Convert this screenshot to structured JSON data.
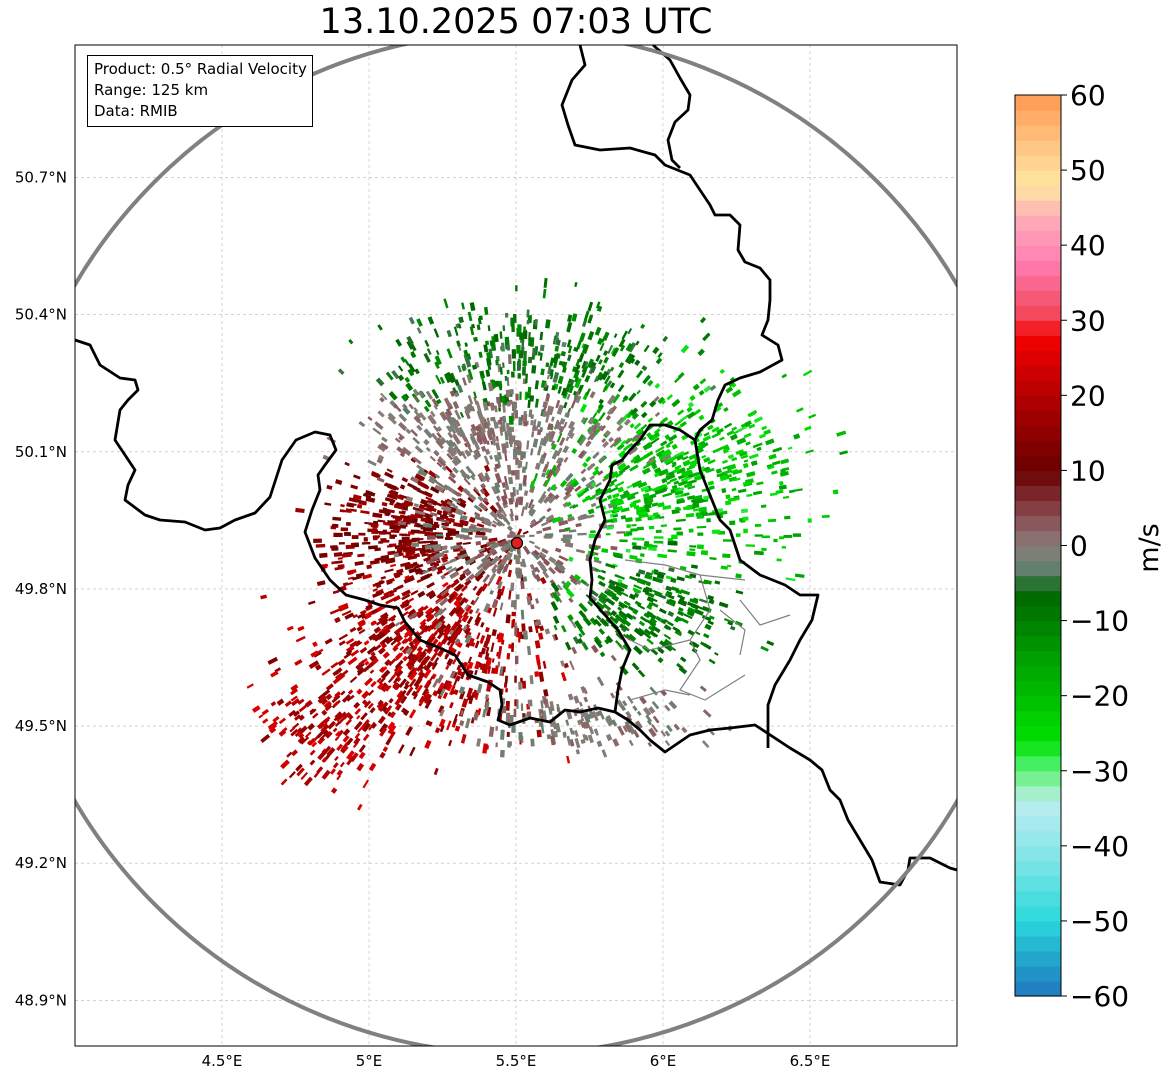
{
  "title": "13.10.2025 07:03 UTC",
  "info": {
    "product": "Product: 0.5° Radial Velocity",
    "range": "Range: 125 km",
    "data": "Data: RMIB"
  },
  "map": {
    "lon_ticks": [
      4.5,
      5.0,
      5.5,
      6.0,
      6.5
    ],
    "lon_tick_labels": [
      "4.5°E",
      "5°E",
      "5.5°E",
      "6°E",
      "6.5°E"
    ],
    "lat_ticks": [
      50.7,
      50.4,
      50.1,
      49.8,
      49.5,
      49.2,
      48.9
    ],
    "lat_tick_labels": [
      "50.7°N",
      "50.4°N",
      "50.1°N",
      "49.8°N",
      "49.5°N",
      "49.2°N",
      "48.9°N"
    ],
    "lon_range": [
      4.0,
      7.0
    ],
    "lat_range": [
      48.8,
      50.99
    ],
    "radar_site": {
      "lon": 5.505,
      "lat": 49.915
    },
    "range_circle_km": 125,
    "colors": {
      "range_ring": "#808080",
      "border": "#000000",
      "subdivision": "#808080",
      "radar_marker": "#e02020",
      "grid": "#b8b8b8"
    }
  },
  "colorbar": {
    "unit": "m/s",
    "vmin": -60,
    "vmax": 60,
    "ticks": [
      60,
      50,
      40,
      30,
      20,
      10,
      0,
      -10,
      -20,
      -30,
      -40,
      -50,
      -60
    ],
    "tick_labels": [
      "60",
      "50",
      "40",
      "30",
      "20",
      "10",
      "0",
      "−10",
      "−20",
      "−30",
      "−40",
      "−50",
      "−60"
    ],
    "stops": [
      {
        "v": -60,
        "c": "#1f77c0"
      },
      {
        "v": -55,
        "c": "#22a6cc"
      },
      {
        "v": -50,
        "c": "#2ad8dc"
      },
      {
        "v": -42,
        "c": "#7ee4e6"
      },
      {
        "v": -34,
        "c": "#bdeef0"
      },
      {
        "v": -32,
        "c": "#8ff0a8"
      },
      {
        "v": -29,
        "c": "#44f060"
      },
      {
        "v": -26,
        "c": "#00e000"
      },
      {
        "v": -15,
        "c": "#00a000"
      },
      {
        "v": -6,
        "c": "#006400"
      },
      {
        "v": -4,
        "c": "#56806a"
      },
      {
        "v": 0,
        "c": "#8a7d78"
      },
      {
        "v": 4,
        "c": "#8a4a52"
      },
      {
        "v": 10,
        "c": "#6a0000"
      },
      {
        "v": 20,
        "c": "#b40000"
      },
      {
        "v": 28,
        "c": "#f50000"
      },
      {
        "v": 30,
        "c": "#f24050"
      },
      {
        "v": 38,
        "c": "#ff80b4"
      },
      {
        "v": 44,
        "c": "#ffb0b8"
      },
      {
        "v": 48,
        "c": "#ffe8a0"
      },
      {
        "v": 54,
        "c": "#ffc080"
      },
      {
        "v": 60,
        "c": "#ff9a50"
      }
    ]
  },
  "echo_clusters": [
    {
      "name": "red-southwest",
      "lon": 5.2,
      "lat": 49.67,
      "rlon": 0.42,
      "rlat": 0.2,
      "n": 620,
      "vmin": 12,
      "vmax": 26
    },
    {
      "name": "darkred-west",
      "lon": 5.15,
      "lat": 49.93,
      "rlon": 0.3,
      "rlat": 0.14,
      "n": 380,
      "vmin": 9,
      "vmax": 18
    },
    {
      "name": "red-far-southwest",
      "lon": 4.85,
      "lat": 49.5,
      "rlon": 0.25,
      "rlat": 0.14,
      "n": 160,
      "vmin": 14,
      "vmax": 26
    },
    {
      "name": "gray-center",
      "lon": 5.5,
      "lat": 49.95,
      "rlon": 0.35,
      "rlat": 0.3,
      "n": 520,
      "vmin": -3,
      "vmax": 4
    },
    {
      "name": "green-east",
      "lon": 6.05,
      "lat": 50.05,
      "rlon": 0.45,
      "rlat": 0.22,
      "n": 560,
      "vmin": -28,
      "vmax": -14
    },
    {
      "name": "darkgreen-north",
      "lon": 5.55,
      "lat": 50.3,
      "rlon": 0.55,
      "rlat": 0.12,
      "n": 320,
      "vmin": -12,
      "vmax": -4
    },
    {
      "name": "darkgreen-southeast",
      "lon": 5.95,
      "lat": 49.75,
      "rlon": 0.3,
      "rlat": 0.12,
      "n": 240,
      "vmin": -14,
      "vmax": -5
    },
    {
      "name": "gray-south",
      "lon": 5.7,
      "lat": 49.52,
      "rlon": 0.45,
      "rlat": 0.08,
      "n": 160,
      "vmin": -3,
      "vmax": 3
    },
    {
      "name": "gray-north-band",
      "lon": 5.45,
      "lat": 50.15,
      "rlon": 0.55,
      "rlat": 0.1,
      "n": 260,
      "vmin": -2,
      "vmax": 3
    }
  ]
}
